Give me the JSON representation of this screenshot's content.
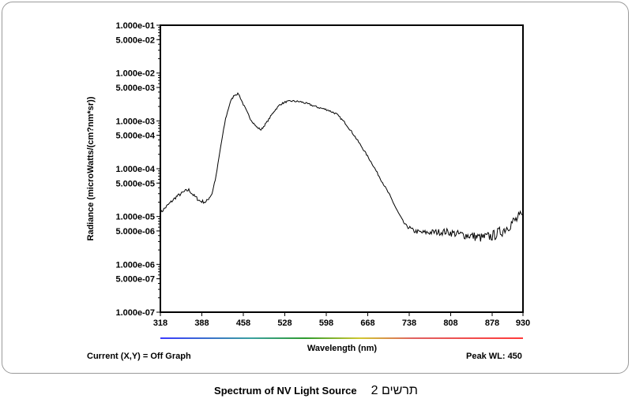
{
  "chart_data": {
    "type": "line",
    "xlabel": "Wavelength (nm)",
    "ylabel": "Radiance (microWatts/(cm?nm*sr))",
    "xlim": [
      318,
      930
    ],
    "ylim": [
      1e-07,
      0.1
    ],
    "yscale": "log",
    "x_ticks": [
      318,
      388,
      458,
      528,
      598,
      668,
      738,
      808,
      878,
      930
    ],
    "y_ticks": [
      {
        "value": 0.1,
        "label": "1.000e-01"
      },
      {
        "value": 0.05,
        "label": "5.000e-02"
      },
      {
        "value": 0.01,
        "label": "1.000e-02"
      },
      {
        "value": 0.005,
        "label": "5.000e-03"
      },
      {
        "value": 0.001,
        "label": "1.000e-03"
      },
      {
        "value": 0.0005,
        "label": "5.000e-04"
      },
      {
        "value": 0.0001,
        "label": "1.000e-04"
      },
      {
        "value": 5e-05,
        "label": "5.000e-05"
      },
      {
        "value": 1e-05,
        "label": "1.000e-05"
      },
      {
        "value": 5e-06,
        "label": "5.000e-06"
      },
      {
        "value": 1e-06,
        "label": "1.000e-06"
      },
      {
        "value": 5e-07,
        "label": "5.000e-07"
      },
      {
        "value": 1e-07,
        "label": "1.000e-07"
      }
    ],
    "grid": false,
    "series": [
      {
        "color": "#000000",
        "points": [
          [
            318,
            1.2e-05
          ],
          [
            330,
            1.7e-05
          ],
          [
            345,
            2.6e-05
          ],
          [
            360,
            3.4e-05
          ],
          [
            366,
            3.6e-05
          ],
          [
            375,
            2.7e-05
          ],
          [
            385,
            2.1e-05
          ],
          [
            395,
            2e-05
          ],
          [
            405,
            3e-05
          ],
          [
            412,
            7e-05
          ],
          [
            420,
            0.0003
          ],
          [
            428,
            0.0011
          ],
          [
            436,
            0.0025
          ],
          [
            443,
            0.0035
          ],
          [
            450,
            0.0037
          ],
          [
            458,
            0.0022
          ],
          [
            470,
            0.0011
          ],
          [
            480,
            0.00075
          ],
          [
            488,
            0.00065
          ],
          [
            498,
            0.00095
          ],
          [
            510,
            0.0016
          ],
          [
            520,
            0.0022
          ],
          [
            530,
            0.0025
          ],
          [
            540,
            0.0026
          ],
          [
            555,
            0.0025
          ],
          [
            570,
            0.0022
          ],
          [
            585,
            0.0019
          ],
          [
            600,
            0.0017
          ],
          [
            615,
            0.0014
          ],
          [
            630,
            0.0009
          ],
          [
            645,
            0.0005
          ],
          [
            660,
            0.00026
          ],
          [
            675,
            0.00013
          ],
          [
            690,
            6e-05
          ],
          [
            705,
            2.8e-05
          ],
          [
            718,
            1.3e-05
          ],
          [
            730,
            7e-06
          ],
          [
            745,
            5e-06
          ],
          [
            760,
            4.6e-06
          ],
          [
            780,
            4.7e-06
          ],
          [
            800,
            4.8e-06
          ],
          [
            820,
            4.3e-06
          ],
          [
            840,
            4e-06
          ],
          [
            860,
            3.6e-06
          ],
          [
            878,
            3.9e-06
          ],
          [
            895,
            5e-06
          ],
          [
            912,
            7.5e-06
          ],
          [
            930,
            1.05e-05
          ]
        ]
      }
    ]
  },
  "status": {
    "current": "Current (X,Y) = Off Graph",
    "peak": "Peak WL:  450"
  },
  "caption": {
    "title": "Spectrum of NV Light Source",
    "hebrew": "תרשים 2"
  },
  "colors": {
    "spectrum_bar": [
      "#3a3aff",
      "#2e9b2e",
      "#d7d72a",
      "#e06060",
      "#ff3a3a"
    ]
  }
}
